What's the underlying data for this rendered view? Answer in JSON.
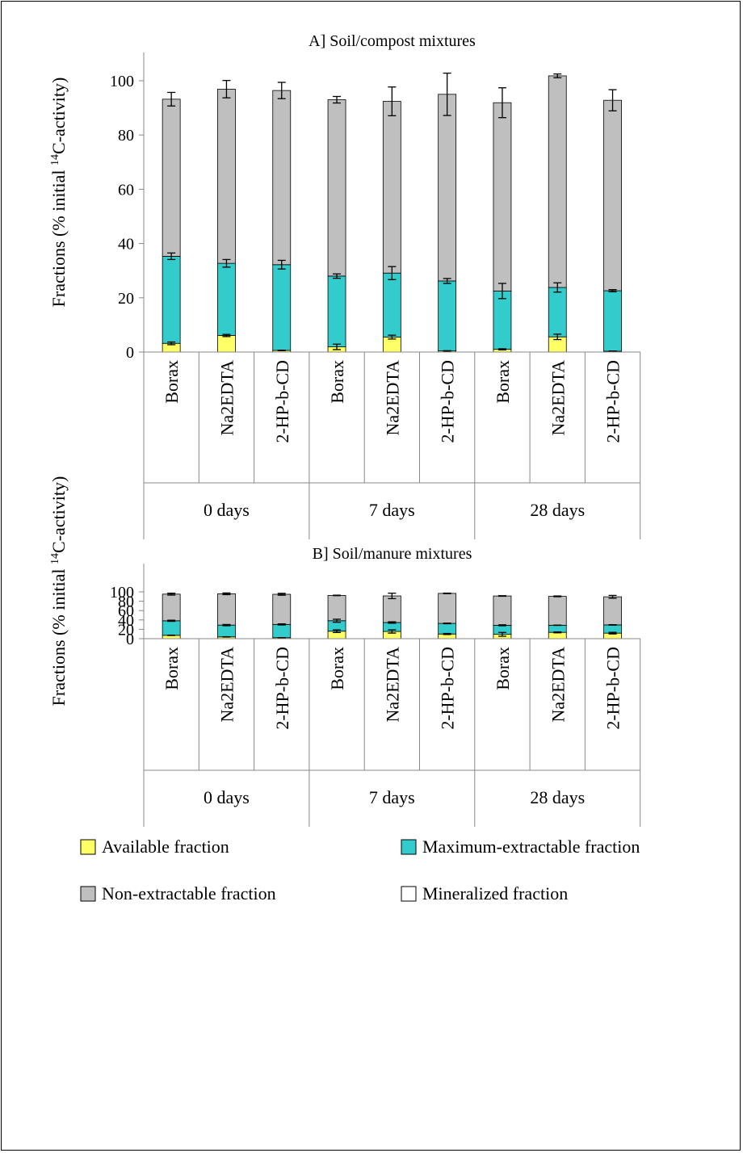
{
  "legend": {
    "items": [
      {
        "label": "Available fraction",
        "color": "#ffff66"
      },
      {
        "label": "Maximum-extractable fraction",
        "color": "#33cccc"
      },
      {
        "label": "Non-extractable fraction",
        "color": "#bfbfbf"
      },
      {
        "label": "Mineralized fraction",
        "color": "#ffffff"
      }
    ]
  },
  "chart_data": [
    {
      "type": "bar",
      "stacked": true,
      "title": "A] Soil/compost mixtures",
      "ylabel": "Fractions (% initial 14C-activity)",
      "ylabel_prefix": "Fractions (% initial ",
      "ylabel_sup": "14",
      "ylabel_suffix": "C-activity)",
      "ylim": [
        0,
        100
      ],
      "yticks": [
        "0",
        "20",
        "40",
        "60",
        "80",
        "100"
      ],
      "grid": false,
      "groups": [
        "0 days",
        "7 days",
        "28 days"
      ],
      "categories": [
        "Borax",
        "Na2EDTA",
        "2-HP-b-CD",
        "Borax",
        "Na2EDTA",
        "2-HP-b-CD",
        "Borax",
        "Na2EDTA",
        "2-HP-b-CD"
      ],
      "series": [
        {
          "name": "Available fraction",
          "color": "#ffff66",
          "values": [
            3.2,
            6.1,
            0.6,
            1.9,
            5.5,
            0.4,
            1.0,
            5.6,
            0.3
          ],
          "err": [
            0.5,
            0.4,
            0.1,
            1.0,
            0.7,
            0.1,
            0.2,
            1.0,
            0.1
          ]
        },
        {
          "name": "Maximum-extractable fraction",
          "color": "#33cccc",
          "values": [
            32.1,
            26.6,
            31.6,
            26.1,
            23.6,
            25.8,
            21.5,
            18.2,
            22.3
          ],
          "err": [
            1.2,
            1.4,
            1.6,
            0.8,
            2.4,
            0.9,
            2.8,
            1.7,
            0.4
          ]
        },
        {
          "name": "Non-extractable fraction",
          "color": "#bfbfbf",
          "values": [
            57.9,
            64.2,
            64.2,
            65.0,
            63.3,
            68.8,
            69.4,
            78.0,
            70.2
          ],
          "err": [
            2.5,
            3.2,
            3.0,
            1.2,
            5.3,
            7.8,
            5.5,
            0.7,
            3.9
          ]
        },
        {
          "name": "Mineralized fraction",
          "color": "#ffffff",
          "values": [
            0,
            0,
            0,
            0,
            0,
            0,
            0,
            0,
            0
          ],
          "err": [
            0,
            0,
            0,
            0,
            0,
            0,
            0,
            0,
            0
          ]
        }
      ]
    },
    {
      "type": "bar",
      "stacked": true,
      "title": "B] Soil/manure mixtures",
      "ylabel": "Fractions (% initial 14C-activity)",
      "ylabel_prefix": "Fractions (% initial ",
      "ylabel_sup": "14",
      "ylabel_suffix": "C-activity)",
      "ylim": [
        0,
        100
      ],
      "yticks": [
        "0",
        "20",
        "40",
        "60",
        "80",
        "100"
      ],
      "grid": false,
      "groups": [
        "0 days",
        "7 days",
        "28 days"
      ],
      "categories": [
        "Borax",
        "Na2EDTA",
        "2-HP-b-CD",
        "Borax",
        "Na2EDTA",
        "2-HP-b-CD",
        "Borax",
        "Na2EDTA",
        "2-HP-b-CD"
      ],
      "series": [
        {
          "name": "Available fraction",
          "color": "#ffff66",
          "values": [
            7.2,
            3.8,
            2.1,
            16.0,
            15.4,
            10.0,
            9.3,
            13.5,
            11.8
          ],
          "err": [
            0.4,
            0.3,
            0.2,
            2.8,
            3.5,
            1.1,
            4.0,
            1.0,
            1.7
          ]
        },
        {
          "name": "Maximum-extractable fraction",
          "color": "#33cccc",
          "values": [
            31.0,
            25.2,
            28.4,
            22.3,
            19.1,
            22.6,
            19.3,
            15.2,
            17.6
          ],
          "err": [
            1.2,
            1.3,
            1.2,
            3.2,
            1.5,
            0.7,
            1.0,
            0.3,
            0.5
          ]
        },
        {
          "name": "Non-extractable fraction",
          "color": "#bfbfbf",
          "values": [
            56.9,
            66.8,
            64.3,
            54.1,
            56.8,
            64.1,
            62.6,
            61.7,
            60.0
          ],
          "err": [
            2.0,
            1.8,
            2.0,
            0.5,
            5.8,
            0.6,
            0.6,
            0.8,
            3.0
          ]
        },
        {
          "name": "Mineralized fraction",
          "color": "#ffffff",
          "values": [
            0,
            0,
            0,
            0,
            0,
            0,
            0,
            0,
            0
          ],
          "err": [
            0,
            0,
            0,
            0,
            0,
            0,
            0,
            0,
            0
          ]
        }
      ]
    }
  ]
}
